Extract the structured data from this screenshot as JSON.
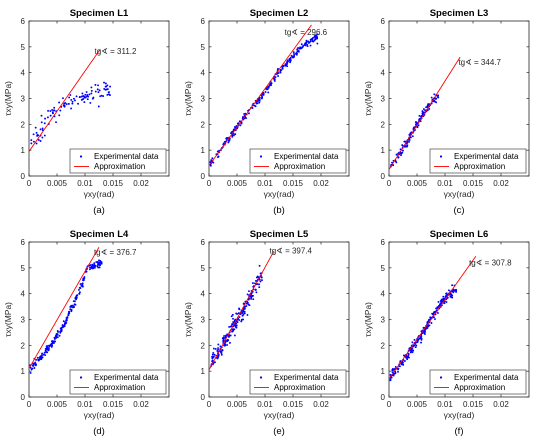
{
  "chart_data": [
    {
      "type": "scatter",
      "title": "Specimen L1",
      "xlabel": "γxy(rad)",
      "ylabel": "τxy(MPa)",
      "xlim": [
        0,
        0.025
      ],
      "ylim": [
        0,
        6
      ],
      "xticks": [
        0,
        0.005,
        0.01,
        0.015,
        0.02
      ],
      "xtick_labels": [
        "0",
        "0.005",
        "0.01",
        "0.015",
        "0.02"
      ],
      "yticks": [
        0,
        1,
        2,
        3,
        4,
        5,
        6
      ],
      "ytick_labels": [
        "0",
        "1",
        "2",
        "3",
        "4",
        "5",
        "6"
      ],
      "annotation": "tg∢ = 311.2",
      "panel_label": "(a)",
      "legend": {
        "placement": "bottom-right",
        "entries": [
          "Experimental data",
          "Approximation"
        ]
      },
      "series": [
        {
          "name": "Experimental data",
          "kind": "points",
          "color": "#0000ff",
          "curve": [
            [
              0.0003,
              1.2
            ],
            [
              0.002,
              1.7
            ],
            [
              0.004,
              2.4
            ],
            [
              0.006,
              2.75
            ],
            [
              0.008,
              2.95
            ],
            [
              0.01,
              3.1
            ],
            [
              0.012,
              3.25
            ],
            [
              0.0145,
              3.4
            ]
          ],
          "spread": 0.28,
          "count": 110
        },
        {
          "name": "Approximation",
          "kind": "line",
          "color": "#ff0000",
          "points": [
            [
              0,
              0.95
            ],
            [
              0.0127,
              4.9
            ]
          ]
        }
      ]
    },
    {
      "type": "scatter",
      "title": "Specimen L2",
      "xlabel": "γxy(rad)",
      "ylabel": "τxy(MPa)",
      "xlim": [
        0,
        0.025
      ],
      "ylim": [
        0,
        6
      ],
      "xticks": [
        0,
        0.005,
        0.01,
        0.015,
        0.02
      ],
      "xtick_labels": [
        "0",
        "0.005",
        "0.01",
        "0.015",
        "0.02"
      ],
      "yticks": [
        0,
        1,
        2,
        3,
        4,
        5,
        6
      ],
      "ytick_labels": [
        "0",
        "1",
        "2",
        "3",
        "4",
        "5",
        "6"
      ],
      "annotation": "tg∢ = 296.6",
      "panel_label": "(b)",
      "legend": {
        "placement": "bottom-right",
        "entries": [
          "Experimental data",
          "Approximation"
        ]
      },
      "series": [
        {
          "name": "Experimental data",
          "kind": "points",
          "color": "#0000ff",
          "curve": [
            [
              0.0002,
              0.45
            ],
            [
              0.003,
              1.3
            ],
            [
              0.006,
              2.2
            ],
            [
              0.009,
              3.0
            ],
            [
              0.012,
              3.9
            ],
            [
              0.015,
              4.65
            ],
            [
              0.017,
              5.1
            ],
            [
              0.0195,
              5.4
            ]
          ],
          "spread": 0.12,
          "count": 260
        },
        {
          "name": "Approximation",
          "kind": "line",
          "color": "#ff0000",
          "points": [
            [
              0,
              0.4
            ],
            [
              0.0183,
              5.85
            ]
          ]
        }
      ]
    },
    {
      "type": "scatter",
      "title": "Specimen L3",
      "xlabel": "γxy(rad)",
      "ylabel": "τxy(MPa)",
      "xlim": [
        0,
        0.025
      ],
      "ylim": [
        0,
        6
      ],
      "xticks": [
        0,
        0.005,
        0.01,
        0.015,
        0.02
      ],
      "xtick_labels": [
        "0",
        "0.005",
        "0.01",
        "0.015",
        "0.02"
      ],
      "yticks": [
        0,
        1,
        2,
        3,
        4,
        5,
        6
      ],
      "ytick_labels": [
        "0",
        "1",
        "2",
        "3",
        "4",
        "5",
        "6"
      ],
      "annotation": "tg∢ = 344.7",
      "panel_label": "(c)",
      "legend": {
        "placement": "bottom-right",
        "entries": [
          "Experimental data",
          "Approximation"
        ]
      },
      "series": [
        {
          "name": "Experimental data",
          "kind": "points",
          "color": "#0000ff",
          "curve": [
            [
              0.0003,
              0.4
            ],
            [
              0.002,
              0.9
            ],
            [
              0.004,
              1.6
            ],
            [
              0.006,
              2.35
            ],
            [
              0.0075,
              2.85
            ],
            [
              0.0088,
              3.15
            ]
          ],
          "spread": 0.15,
          "count": 140
        },
        {
          "name": "Approximation",
          "kind": "line",
          "color": "#ff0000",
          "points": [
            [
              0,
              0.25
            ],
            [
              0.0127,
              4.6
            ]
          ]
        }
      ]
    },
    {
      "type": "scatter",
      "title": "Specimen L4",
      "xlabel": "γxy(rad)",
      "ylabel": "τxy(MPa)",
      "xlim": [
        0,
        0.025
      ],
      "ylim": [
        0,
        6
      ],
      "xticks": [
        0,
        0.005,
        0.01,
        0.015,
        0.02
      ],
      "xtick_labels": [
        "0",
        "0.005",
        "0.01",
        "0.015",
        "0.02"
      ],
      "yticks": [
        0,
        1,
        2,
        3,
        4,
        5,
        6
      ],
      "ytick_labels": [
        "0",
        "1",
        "2",
        "3",
        "4",
        "5",
        "6"
      ],
      "annotation": "tg∢ = 376.7",
      "panel_label": "(d)",
      "legend": {
        "placement": "bottom-right",
        "entries": [
          "Experimental data",
          "Approximation"
        ]
      },
      "series": [
        {
          "name": "Experimental data",
          "kind": "points",
          "color": "#0000ff",
          "curve": [
            [
              0.0002,
              1.1
            ],
            [
              0.003,
              1.75
            ],
            [
              0.006,
              2.7
            ],
            [
              0.008,
              3.6
            ],
            [
              0.0095,
              4.4
            ],
            [
              0.0105,
              5.0
            ],
            [
              0.013,
              5.15
            ]
          ],
          "spread": 0.13,
          "count": 230
        },
        {
          "name": "Approximation",
          "kind": "line",
          "color": "#ff0000",
          "points": [
            [
              0,
              1.1
            ],
            [
              0.0125,
              5.8
            ]
          ]
        }
      ]
    },
    {
      "type": "scatter",
      "title": "Specimen L5",
      "xlabel": "γxy(rad)",
      "ylabel": "τxy(MPa)",
      "xlim": [
        0,
        0.025
      ],
      "ylim": [
        0,
        6
      ],
      "xticks": [
        0,
        0.005,
        0.01,
        0.015,
        0.02
      ],
      "xtick_labels": [
        "0",
        "0.005",
        "0.01",
        "0.015",
        "0.02"
      ],
      "yticks": [
        0,
        1,
        2,
        3,
        4,
        5,
        6
      ],
      "ytick_labels": [
        "0",
        "1",
        "2",
        "3",
        "4",
        "5",
        "6"
      ],
      "annotation": "tg∢ = 397.4",
      "panel_label": "(e)",
      "legend": {
        "placement": "bottom-right",
        "entries": [
          "Experimental data",
          "Approximation"
        ]
      },
      "series": [
        {
          "name": "Experimental data",
          "kind": "points",
          "color": "#0000ff",
          "curve": [
            [
              0.0003,
              1.3
            ],
            [
              0.002,
              1.8
            ],
            [
              0.004,
              2.6
            ],
            [
              0.006,
              3.3
            ],
            [
              0.0075,
              3.95
            ],
            [
              0.009,
              4.6
            ],
            [
              0.0095,
              4.8
            ]
          ],
          "spread": 0.25,
          "count": 220
        },
        {
          "name": "Approximation",
          "kind": "line",
          "color": "#ff0000",
          "points": [
            [
              0,
              1.05
            ],
            [
              0.0116,
              5.65
            ]
          ]
        }
      ]
    },
    {
      "type": "scatter",
      "title": "Specimen L6",
      "xlabel": "γxy(rad)",
      "ylabel": "τxy(MPa)",
      "xlim": [
        0,
        0.025
      ],
      "ylim": [
        0,
        6
      ],
      "xticks": [
        0,
        0.005,
        0.01,
        0.015,
        0.02
      ],
      "xtick_labels": [
        "0",
        "0.005",
        "0.01",
        "0.015",
        "0.02"
      ],
      "yticks": [
        0,
        1,
        2,
        3,
        4,
        5,
        6
      ],
      "ytick_labels": [
        "0",
        "1",
        "2",
        "3",
        "4",
        "5",
        "6"
      ],
      "annotation": "tg∢ = 307.8",
      "panel_label": "(f)",
      "legend": {
        "placement": "bottom-right",
        "entries": [
          "Experimental data",
          "Approximation"
        ]
      },
      "series": [
        {
          "name": "Experimental data",
          "kind": "points",
          "color": "#0000ff",
          "curve": [
            [
              0.0002,
              0.8
            ],
            [
              0.003,
              1.55
            ],
            [
              0.006,
              2.45
            ],
            [
              0.008,
              3.2
            ],
            [
              0.01,
              3.85
            ],
            [
              0.012,
              4.15
            ]
          ],
          "spread": 0.15,
          "count": 260
        },
        {
          "name": "Approximation",
          "kind": "line",
          "color": "#ff0000",
          "points": [
            [
              0,
              0.7
            ],
            [
              0.0155,
              5.45
            ]
          ]
        }
      ]
    }
  ]
}
